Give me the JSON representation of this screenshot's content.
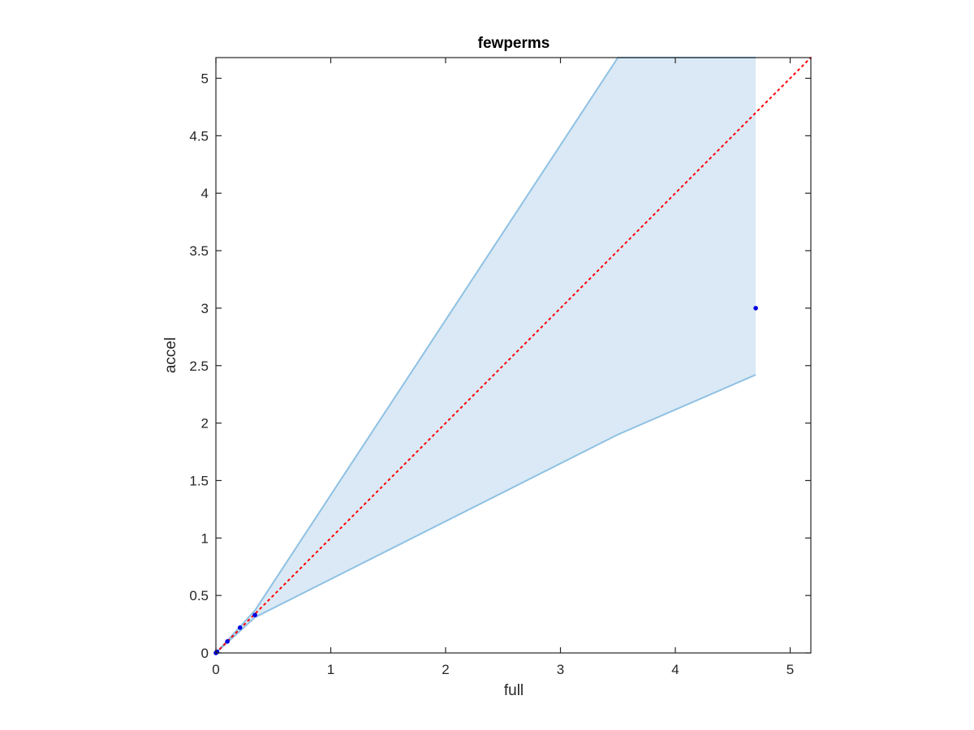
{
  "chart_data": {
    "type": "scatter",
    "title": "fewperms",
    "xlabel": "full",
    "ylabel": "accel",
    "xlim": [
      0,
      5.18
    ],
    "ylim": [
      0,
      5.18
    ],
    "xticks": [
      0,
      1,
      2,
      3,
      4,
      5
    ],
    "yticks": [
      0,
      0.5,
      1,
      1.5,
      2,
      2.5,
      3,
      3.5,
      4,
      4.5,
      5
    ],
    "grid": false,
    "legend": "none",
    "series": [
      {
        "points": [
          [
            0,
            0
          ],
          [
            0.005,
            0.005
          ],
          [
            0.01,
            0.01
          ],
          [
            0.1,
            0.1
          ],
          [
            0.21,
            0.22
          ],
          [
            0.34,
            0.33
          ],
          [
            4.7,
            3.0
          ]
        ],
        "color": "#0000e0"
      }
    ],
    "band": {
      "x": [
        0,
        0.34,
        3.5,
        4.7
      ],
      "upper": [
        0,
        0.37,
        5.18,
        5.18
      ],
      "lower": [
        0,
        0.31,
        1.9,
        2.42
      ],
      "fill_color": "#dae9f5",
      "edge_color": "#8fc1e3"
    },
    "reference_line": {
      "x": [
        0,
        5.18
      ],
      "y": [
        0,
        5.18
      ],
      "color": "#ff0000",
      "style": "dotted"
    }
  }
}
